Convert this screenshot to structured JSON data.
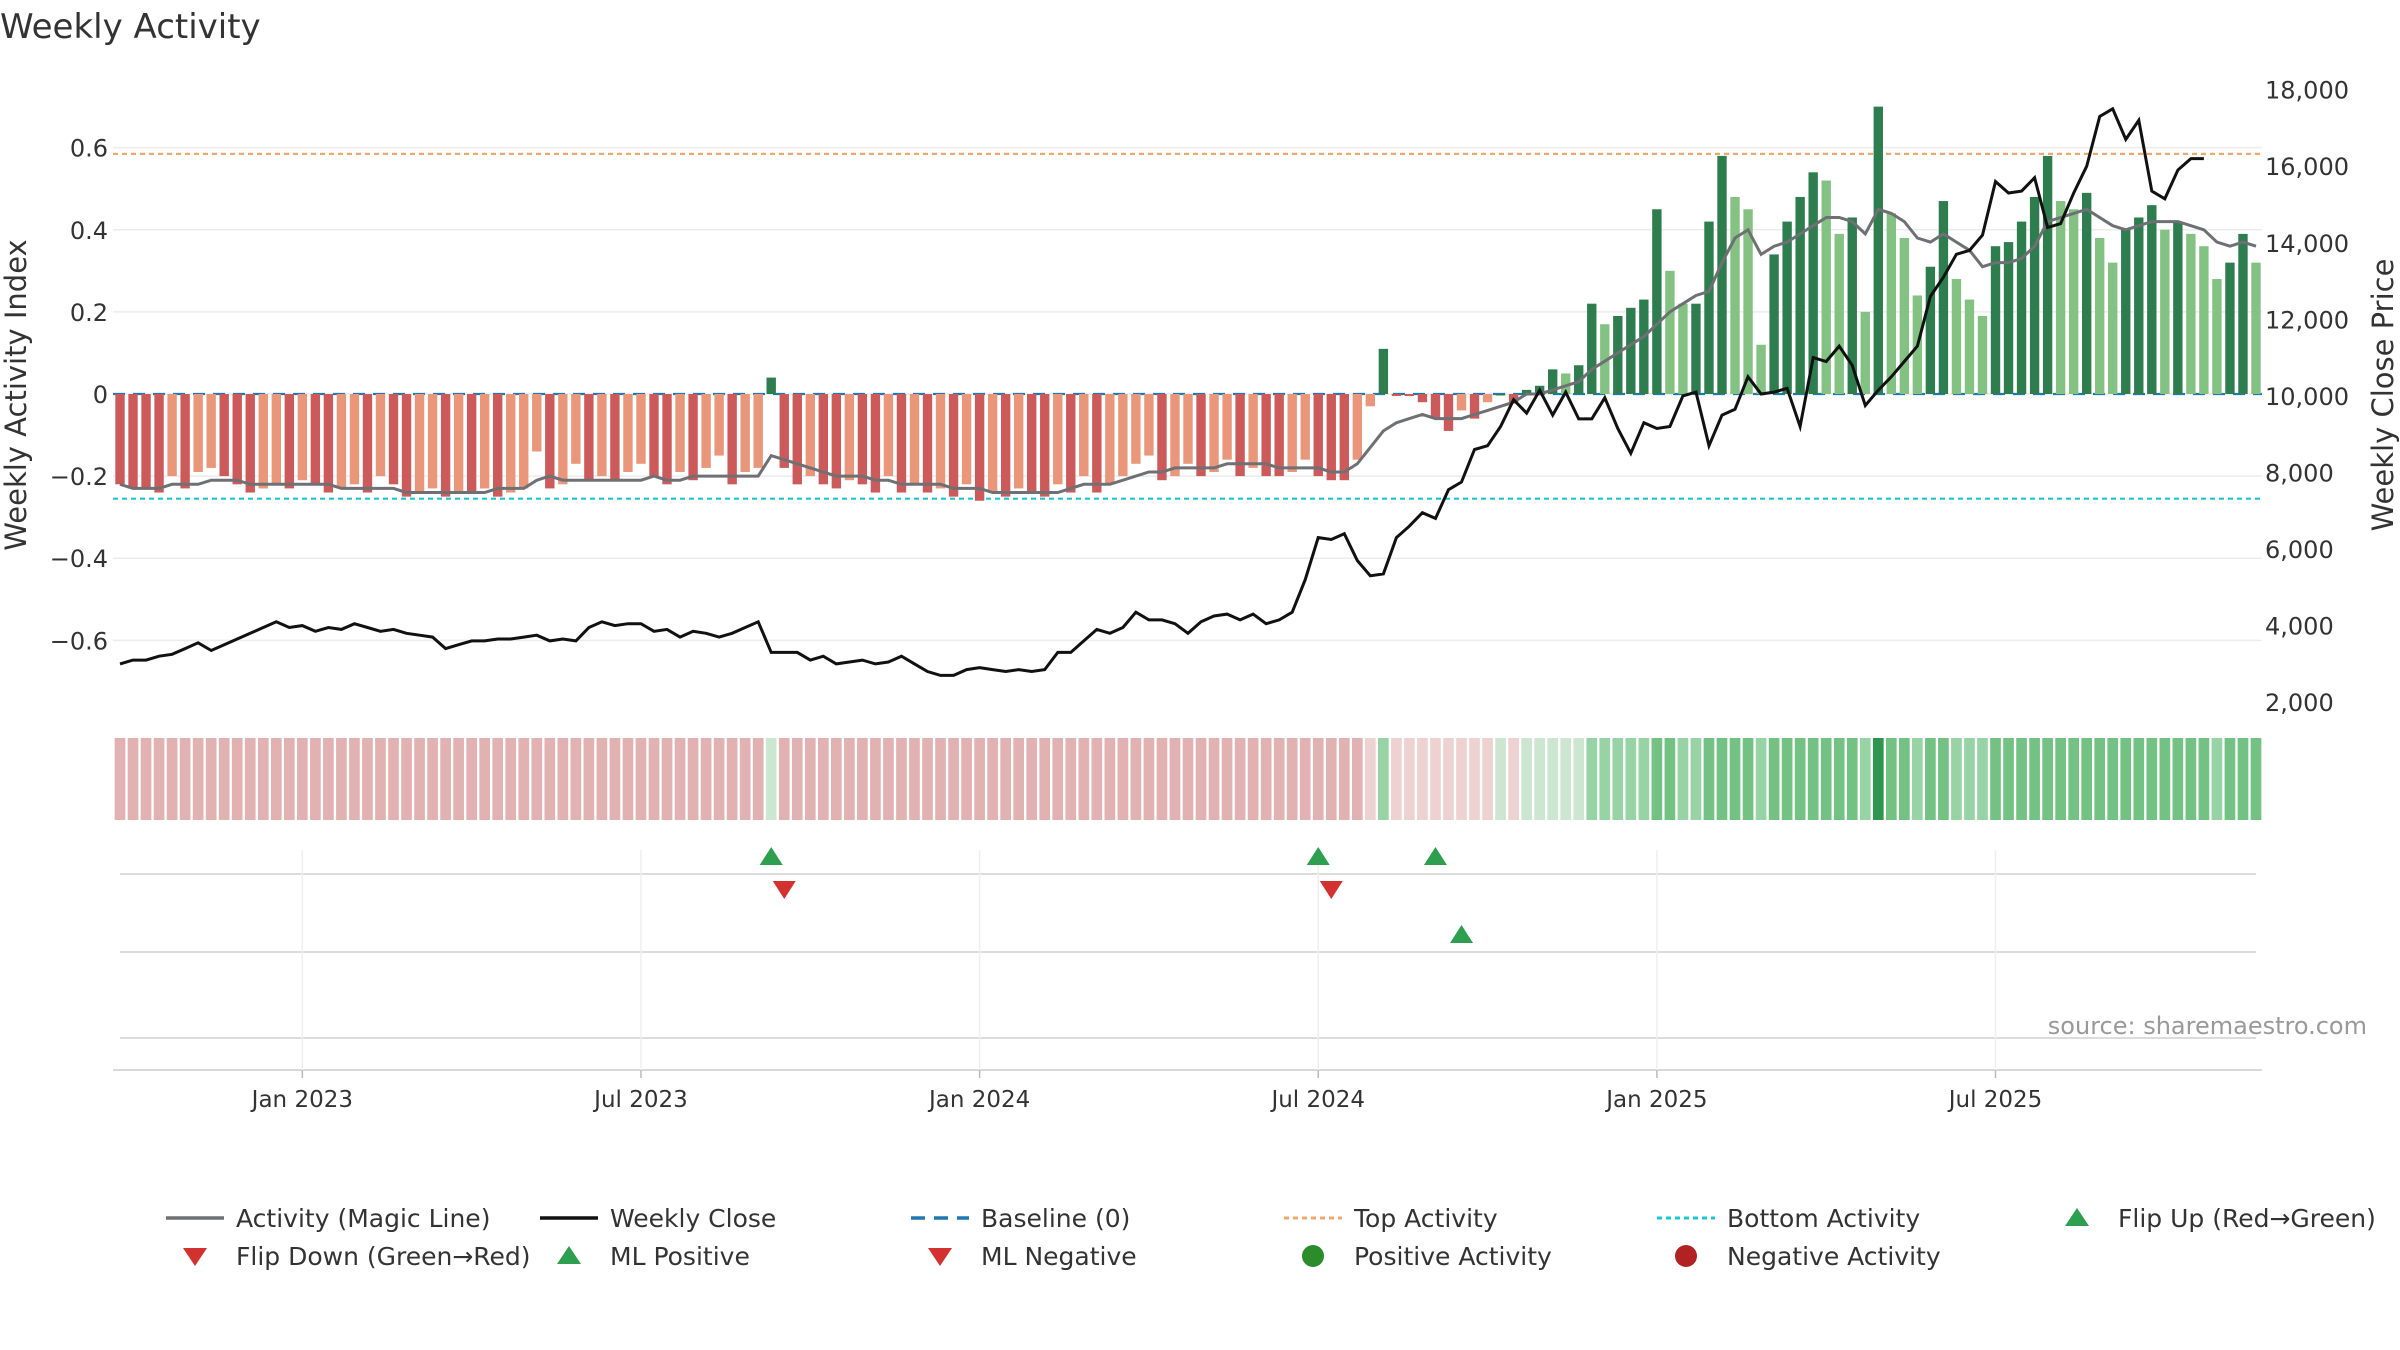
{
  "chart_data": {
    "type": "bar",
    "title": "Weekly Activity",
    "ylabel_left": "Weekly Activity Index",
    "ylabel_right": "Weekly Close Price",
    "source": "source: sharemaestro.com",
    "x_tick_labels": [
      "Jan 2023",
      "Jul 2023",
      "Jan 2024",
      "Jul 2024",
      "Jan 2025",
      "Jul 2025"
    ],
    "y_left_ticks": [
      {
        "value": 0.6,
        "label": "0.6"
      },
      {
        "value": 0.4,
        "label": "0.4"
      },
      {
        "value": 0.2,
        "label": "0.2"
      },
      {
        "value": 0,
        "label": "0"
      },
      {
        "value": -0.2,
        "label": "−0.2"
      },
      {
        "value": -0.4,
        "label": "−0.4"
      },
      {
        "value": -0.6,
        "label": "−0.6"
      }
    ],
    "y_right_ticks": [
      {
        "value": 18000,
        "label": "18,000"
      },
      {
        "value": 16000,
        "label": "16,000"
      },
      {
        "value": 14000,
        "label": "14,000"
      },
      {
        "value": 12000,
        "label": "12,000"
      },
      {
        "value": 10000,
        "label": "10,000"
      },
      {
        "value": 8000,
        "label": "8,000"
      },
      {
        "value": 6000,
        "label": "6,000"
      },
      {
        "value": 4000,
        "label": "4,000"
      },
      {
        "value": 2000,
        "label": "2,000"
      }
    ],
    "ylim_left": [
      -0.76,
      0.76
    ],
    "ylim_right": [
      1900,
      18200
    ],
    "top_activity": 0.585,
    "bottom_activity": -0.255,
    "baseline": 0,
    "activity": [
      -0.22,
      -0.23,
      -0.23,
      -0.24,
      -0.2,
      -0.23,
      -0.19,
      -0.18,
      -0.2,
      -0.22,
      -0.24,
      -0.23,
      -0.22,
      -0.23,
      -0.21,
      -0.22,
      -0.24,
      -0.23,
      -0.22,
      -0.24,
      -0.2,
      -0.22,
      -0.25,
      -0.24,
      -0.23,
      -0.25,
      -0.24,
      -0.24,
      -0.23,
      -0.25,
      -0.24,
      -0.23,
      -0.14,
      -0.23,
      -0.22,
      -0.17,
      -0.21,
      -0.2,
      -0.21,
      -0.19,
      -0.17,
      -0.2,
      -0.22,
      -0.19,
      -0.21,
      -0.18,
      -0.15,
      -0.22,
      -0.19,
      -0.18,
      0.04,
      -0.18,
      -0.22,
      -0.2,
      -0.22,
      -0.23,
      -0.21,
      -0.22,
      -0.24,
      -0.2,
      -0.24,
      -0.22,
      -0.24,
      -0.23,
      -0.25,
      -0.22,
      -0.26,
      -0.24,
      -0.25,
      -0.23,
      -0.24,
      -0.25,
      -0.22,
      -0.24,
      -0.2,
      -0.24,
      -0.22,
      -0.2,
      -0.17,
      -0.15,
      -0.21,
      -0.2,
      -0.17,
      -0.2,
      -0.19,
      -0.16,
      -0.2,
      -0.18,
      -0.2,
      -0.2,
      -0.19,
      -0.16,
      -0.2,
      -0.21,
      -0.21,
      -0.16,
      -0.03,
      0.11,
      -0.005,
      -0.005,
      -0.02,
      -0.06,
      -0.09,
      -0.04,
      -0.06,
      -0.02,
      0,
      -0.02,
      0.01,
      0.02,
      0.06,
      0.05,
      0.07,
      0.22,
      0.17,
      0.19,
      0.21,
      0.23,
      0.45,
      0.3,
      0.22,
      0.22,
      0.42,
      0.58,
      0.48,
      0.45,
      0.12,
      0.34,
      0.42,
      0.48,
      0.54,
      0.52,
      0.39,
      0.43,
      0.2,
      0.7,
      0.44,
      0.38,
      0.24,
      0.31,
      0.47,
      0.28,
      0.23,
      0.19,
      0.36,
      0.37,
      0.42,
      0.48,
      0.58,
      0.47,
      0.45,
      0.49,
      0.38,
      0.32,
      0.4,
      0.43,
      0.46,
      0.4,
      0.42,
      0.39,
      0.36,
      0.28,
      0.32,
      0.39,
      0.32
    ],
    "magic_line": [
      -0.22,
      -0.23,
      -0.23,
      -0.23,
      -0.22,
      -0.22,
      -0.22,
      -0.21,
      -0.21,
      -0.21,
      -0.22,
      -0.22,
      -0.22,
      -0.22,
      -0.22,
      -0.22,
      -0.22,
      -0.23,
      -0.23,
      -0.23,
      -0.23,
      -0.23,
      -0.24,
      -0.24,
      -0.24,
      -0.24,
      -0.24,
      -0.24,
      -0.24,
      -0.23,
      -0.23,
      -0.23,
      -0.21,
      -0.2,
      -0.21,
      -0.21,
      -0.21,
      -0.21,
      -0.21,
      -0.21,
      -0.21,
      -0.2,
      -0.21,
      -0.21,
      -0.2,
      -0.2,
      -0.2,
      -0.2,
      -0.2,
      -0.2,
      -0.15,
      -0.16,
      -0.17,
      -0.18,
      -0.19,
      -0.2,
      -0.2,
      -0.2,
      -0.21,
      -0.21,
      -0.22,
      -0.22,
      -0.22,
      -0.22,
      -0.23,
      -0.23,
      -0.23,
      -0.24,
      -0.24,
      -0.24,
      -0.24,
      -0.24,
      -0.24,
      -0.23,
      -0.22,
      -0.22,
      -0.22,
      -0.21,
      -0.2,
      -0.19,
      -0.19,
      -0.18,
      -0.18,
      -0.18,
      -0.18,
      -0.17,
      -0.17,
      -0.17,
      -0.17,
      -0.18,
      -0.18,
      -0.18,
      -0.18,
      -0.19,
      -0.19,
      -0.17,
      -0.13,
      -0.09,
      -0.07,
      -0.06,
      -0.05,
      -0.06,
      -0.06,
      -0.06,
      -0.05,
      -0.04,
      -0.03,
      -0.02,
      0,
      0,
      0.01,
      0.02,
      0.03,
      0.06,
      0.08,
      0.1,
      0.12,
      0.14,
      0.17,
      0.2,
      0.22,
      0.24,
      0.25,
      0.32,
      0.38,
      0.4,
      0.34,
      0.36,
      0.37,
      0.39,
      0.41,
      0.43,
      0.43,
      0.42,
      0.39,
      0.45,
      0.44,
      0.42,
      0.38,
      0.37,
      0.39,
      0.37,
      0.35,
      0.31,
      0.32,
      0.32,
      0.33,
      0.36,
      0.42,
      0.43,
      0.44,
      0.45,
      0.43,
      0.41,
      0.4,
      0.41,
      0.42,
      0.42,
      0.42,
      0.41,
      0.4,
      0.37,
      0.36,
      0.37,
      0.36
    ],
    "weekly_close": [
      3000,
      3100,
      3100,
      3200,
      3250,
      3400,
      3550,
      3350,
      3500,
      3650,
      3800,
      3950,
      4100,
      3950,
      4000,
      3850,
      3950,
      3900,
      4050,
      3950,
      3850,
      3900,
      3800,
      3750,
      3700,
      3400,
      3500,
      3600,
      3600,
      3650,
      3650,
      3700,
      3750,
      3600,
      3650,
      3600,
      3950,
      4100,
      4000,
      4050,
      4050,
      3850,
      3900,
      3700,
      3850,
      3800,
      3700,
      3800,
      3950,
      4100,
      3300,
      3300,
      3300,
      3100,
      3200,
      3000,
      3050,
      3100,
      3000,
      3050,
      3200,
      3000,
      2800,
      2700,
      2700,
      2850,
      2900,
      2850,
      2800,
      2850,
      2800,
      2850,
      3300,
      3300,
      3600,
      3900,
      3800,
      3950,
      4350,
      4150,
      4150,
      4050,
      3800,
      4100,
      4250,
      4300,
      4150,
      4300,
      4050,
      4150,
      4350,
      5200,
      6300,
      6250,
      6400,
      5700,
      5300,
      5350,
      6300,
      6600,
      6950,
      6800,
      7550,
      7750,
      8600,
      8700,
      9200,
      9900,
      9550,
      10150,
      9500,
      10100,
      9400,
      9400,
      9950,
      9150,
      8500,
      9300,
      9150,
      9200,
      10000,
      10100,
      8700,
      9500,
      9650,
      10500,
      10050,
      10100,
      10200,
      9200,
      11000,
      10900,
      11300,
      10800,
      9750,
      10150,
      10500,
      10900,
      11300,
      12600,
      13100,
      13700,
      13800,
      14200,
      15600,
      15300,
      15350,
      15700,
      14400,
      14500,
      15300,
      16000,
      17300,
      17500,
      16700,
      17200,
      15350,
      15150,
      15900,
      16200,
      16200
    ],
    "strip_colors": {
      "neg": "#e2b2b2",
      "neg_light": "#eed2d2",
      "green_light": "#cde6d2",
      "green_mid": "#97d3a4",
      "green": "#74c184",
      "green_dark": "#2f9650"
    },
    "bar_colors": {
      "neg_dark": "#cd5a5a",
      "neg_light": "#e9967a",
      "pos_dark": "#2e7d4f",
      "pos_light": "#83c283"
    },
    "line_colors": {
      "magic": "#6e7073",
      "close": "#111111",
      "baseline": "#1f77b4",
      "top": "#f0a868",
      "bottom": "#18c6d6"
    },
    "ml_positive_weeks": [
      50,
      92,
      101
    ],
    "ml_negative_weeks": [
      51,
      93
    ],
    "flip_up_weeks": [
      103
    ],
    "x_tick_week_index": [
      14,
      40,
      66,
      92,
      118,
      144
    ],
    "legend": [
      {
        "label": "Activity (Magic Line)",
        "kind": "line",
        "color": "#6e7073"
      },
      {
        "label": "Weekly Close",
        "kind": "line",
        "color": "#111111"
      },
      {
        "label": "Baseline (0)",
        "kind": "dash",
        "color": "#1f77b4"
      },
      {
        "label": "Top Activity",
        "kind": "dot",
        "color": "#f0a868"
      },
      {
        "label": "Bottom Activity",
        "kind": "dot",
        "color": "#18c6d6"
      },
      {
        "label": "Flip Up (Red→Green)",
        "kind": "tri-up",
        "color": "#2e9e4f"
      },
      {
        "label": "Flip Down (Green→Red)",
        "kind": "tri-down",
        "color": "#d33030"
      },
      {
        "label": "ML Positive",
        "kind": "tri-up",
        "color": "#2e9e4f"
      },
      {
        "label": "ML Negative",
        "kind": "tri-down",
        "color": "#d33030"
      },
      {
        "label": "Positive Activity",
        "kind": "circle",
        "color": "#2a8c2a"
      },
      {
        "label": "Negative Activity",
        "kind": "circle",
        "color": "#b22222"
      }
    ]
  }
}
